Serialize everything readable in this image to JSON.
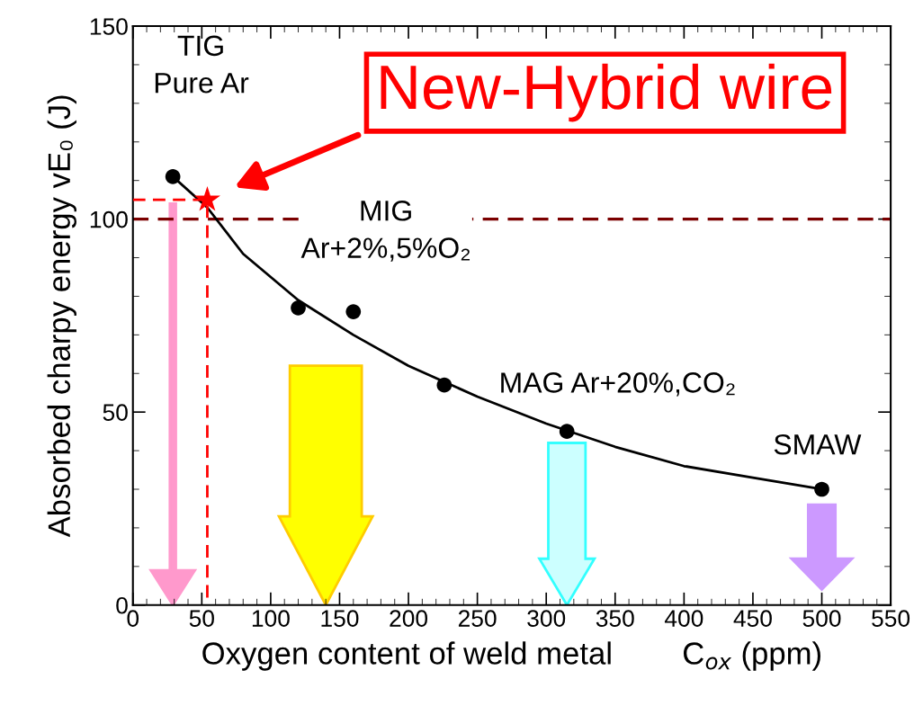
{
  "chart_data": {
    "type": "scatter",
    "xlabel": "Oxygen content of weld metal        C$_{ox}$ (ppm)",
    "ylabel": "Absorbed charpy energy vE₀ (J)",
    "xlim": [
      0,
      550
    ],
    "xticks": [
      0,
      50,
      100,
      150,
      200,
      250,
      300,
      350,
      400,
      450,
      500,
      550
    ],
    "ylim": [
      0,
      150
    ],
    "yticks": [
      0,
      50,
      100,
      150
    ],
    "grid": false,
    "legend": false,
    "marker": "circle",
    "series": [
      {
        "color": "#000000",
        "x": [
          29,
          120,
          160,
          226,
          315,
          500
        ],
        "values": [
          111,
          77,
          76,
          57,
          45,
          30
        ]
      },
      {
        "type": "line",
        "color": "#000000",
        "marker": "none",
        "line_style": "solid",
        "x": [
          29,
          54,
          80,
          120,
          160,
          200,
          250,
          300,
          350,
          400,
          450,
          500
        ],
        "values": [
          111,
          103,
          91,
          79,
          70,
          62,
          54,
          47,
          41,
          36,
          33,
          30
        ]
      },
      {
        "type": "line",
        "color": "#ff0000",
        "marker": "none",
        "line_style": "dashed",
        "x": [
          0,
          54,
          54
        ],
        "values": [
          105,
          105,
          0
        ]
      },
      {
        "type": "scatter",
        "color": "#ff0000",
        "marker": "star",
        "x": [
          54
        ],
        "values": [
          105
        ]
      }
    ],
    "ref_lines": [
      {
        "axis": "y",
        "value": 100,
        "color": "#7b0000",
        "line_style": "dashed"
      }
    ],
    "annotations": [
      "TIG\nPure Ar",
      "MIG\nAr+2%,5%O₂",
      "MAG Ar+20%,CO₂",
      "SMAW",
      "New-Hybrid wire"
    ]
  }
}
